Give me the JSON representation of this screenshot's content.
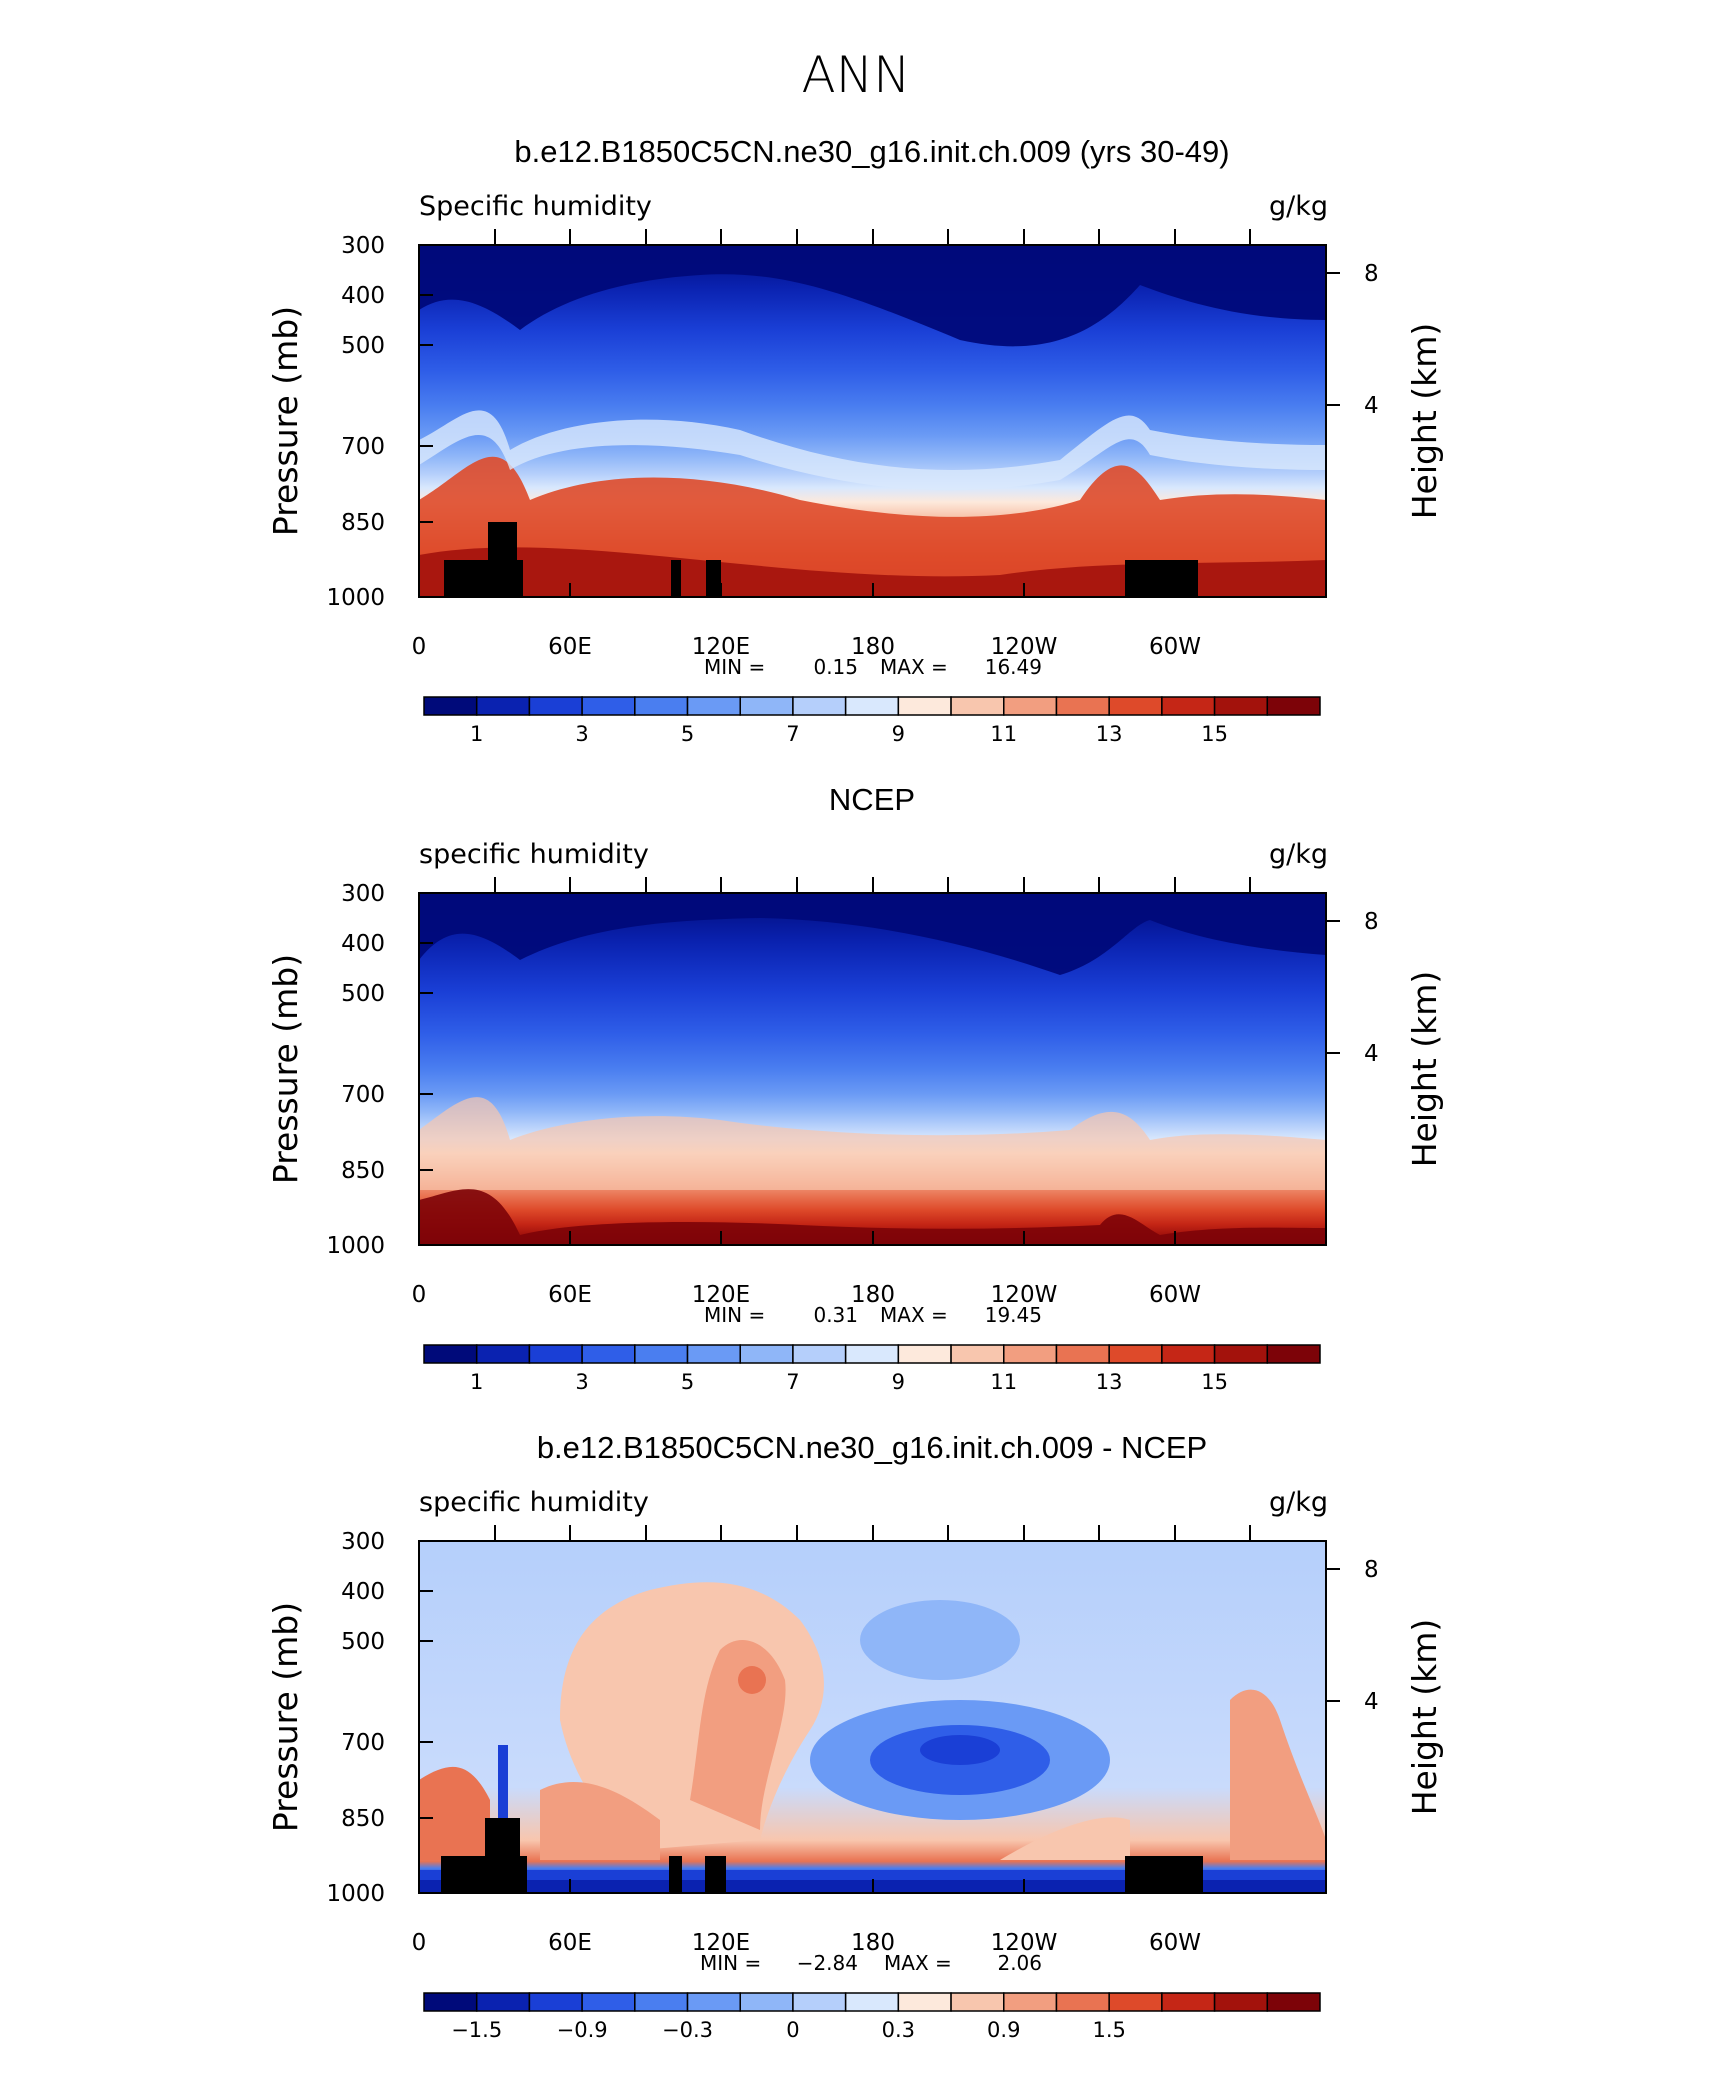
{
  "figure": {
    "main_title": "ANN"
  },
  "chart_data": [
    {
      "type": "heatmap",
      "title": "b.e12.B1850C5CN.ne30_g16.init.ch.009 (yrs 30-49)",
      "left_label": "Specific humidity",
      "right_label": "g/kg",
      "ylabel": "Pressure (mb)",
      "ylabel_right": "Height (km)",
      "yticks": [
        "300",
        "400",
        "500",
        "700",
        "850",
        "1000"
      ],
      "yticks_right": [
        "8",
        "4"
      ],
      "xticks": [
        "0",
        "60E",
        "120E",
        "180",
        "120W",
        "60W"
      ],
      "min_label": "MIN =",
      "min_value": "0.15",
      "max_label": "MAX =",
      "max_value": "16.49",
      "colorbar_labels": [
        "1",
        "3",
        "5",
        "7",
        "9",
        "11",
        "13",
        "15"
      ],
      "colorbar_colors": [
        "#000a7a",
        "#0a22b0",
        "#1a3fd6",
        "#2f5ee8",
        "#4a7ef0",
        "#6a9af5",
        "#8fb6f8",
        "#b5cffb",
        "#d9e8fd",
        "#fde9dc",
        "#f8c6ae",
        "#f29e80",
        "#e97352",
        "#de4a2a",
        "#c52616",
        "#a3120c",
        "#7d0308"
      ]
    },
    {
      "type": "heatmap",
      "title": "NCEP",
      "left_label": "specific humidity",
      "right_label": "g/kg",
      "ylabel": "Pressure (mb)",
      "ylabel_right": "Height (km)",
      "yticks": [
        "300",
        "400",
        "500",
        "700",
        "850",
        "1000"
      ],
      "yticks_right": [
        "8",
        "4"
      ],
      "xticks": [
        "0",
        "60E",
        "120E",
        "180",
        "120W",
        "60W"
      ],
      "min_label": "MIN =",
      "min_value": "0.31",
      "max_label": "MAX =",
      "max_value": "19.45",
      "colorbar_labels": [
        "1",
        "3",
        "5",
        "7",
        "9",
        "11",
        "13",
        "15"
      ],
      "colorbar_colors": [
        "#000a7a",
        "#0a22b0",
        "#1a3fd6",
        "#2f5ee8",
        "#4a7ef0",
        "#6a9af5",
        "#8fb6f8",
        "#b5cffb",
        "#d9e8fd",
        "#fde9dc",
        "#f8c6ae",
        "#f29e80",
        "#e97352",
        "#de4a2a",
        "#c52616",
        "#a3120c",
        "#7d0308"
      ]
    },
    {
      "type": "heatmap",
      "title": "b.e12.B1850C5CN.ne30_g16.init.ch.009 - NCEP",
      "left_label": "specific humidity",
      "right_label": "g/kg",
      "ylabel": "Pressure (mb)",
      "ylabel_right": "Height (km)",
      "yticks": [
        "300",
        "400",
        "500",
        "700",
        "850",
        "1000"
      ],
      "yticks_right": [
        "8",
        "4"
      ],
      "xticks": [
        "0",
        "60E",
        "120E",
        "180",
        "120W",
        "60W"
      ],
      "min_label": "MIN =",
      "min_value": "−2.84",
      "max_label": "MAX =",
      "max_value": "2.06",
      "colorbar_labels": [
        "−1.5",
        "−0.9",
        "−0.3",
        "0",
        "0.3",
        "0.9",
        "1.5"
      ],
      "colorbar_colors": [
        "#000a7a",
        "#0a22b0",
        "#1a3fd6",
        "#2f5ee8",
        "#4a7ef0",
        "#6a9af5",
        "#8fb6f8",
        "#b5cffb",
        "#d9e8fd",
        "#fde9dc",
        "#f8c6ae",
        "#f29e80",
        "#e97352",
        "#de4a2a",
        "#c52616",
        "#a3120c",
        "#7d0308"
      ]
    }
  ]
}
